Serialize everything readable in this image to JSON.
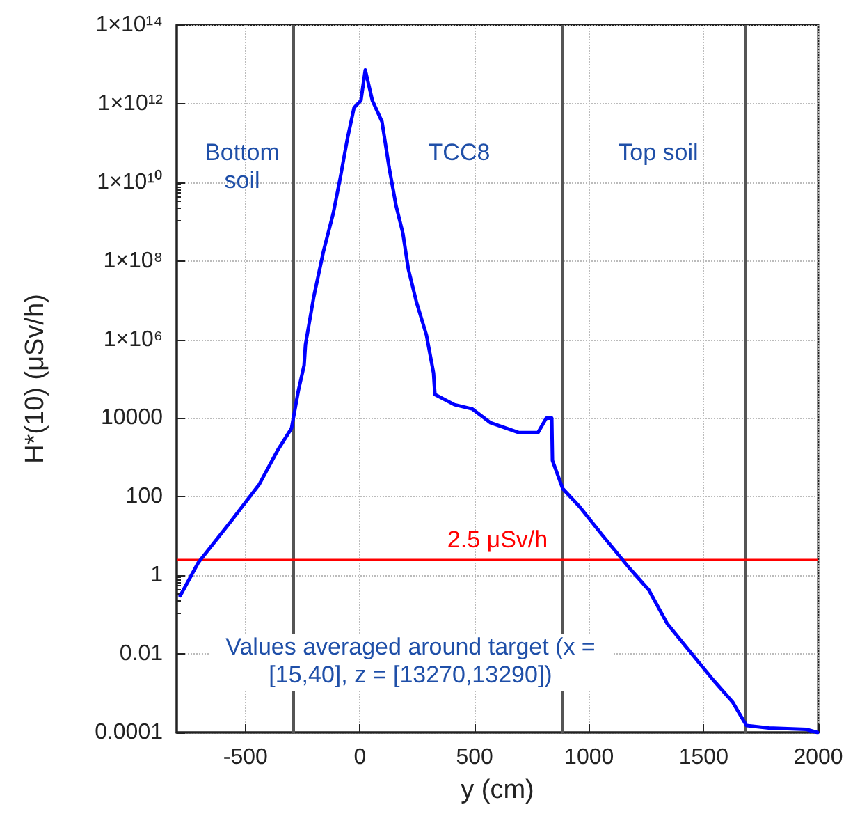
{
  "chart_data": {
    "type": "line",
    "xlabel": "y (cm)",
    "ylabel": "H*(10) (μSv/h)",
    "x": [
      -785,
      -706,
      -560,
      -439,
      -360,
      -299,
      -269,
      -244,
      -238,
      -202,
      -159,
      -117,
      -86,
      -56,
      -26,
      4,
      23,
      54,
      96,
      127,
      157,
      187,
      211,
      247,
      290,
      321,
      327,
      412,
      491,
      570,
      692,
      777,
      813,
      837,
      840,
      885,
      958,
      1055,
      1177,
      1261,
      1341,
      1420,
      1541,
      1626,
      1687,
      1784,
      1948,
      1997
    ],
    "series": [
      {
        "color": "#0000ff",
        "values": [
          0.3,
          2.1,
          25,
          210,
          1500,
          5500,
          50000,
          220000,
          740000,
          12000000,
          180000000,
          1600000000,
          13000000000,
          120000000000,
          790000000000,
          1200000000000,
          7200000000000,
          1200000000000,
          350000000000,
          24000000000,
          2600000000,
          510000000,
          62000000,
          8700000,
          1300000,
          140000,
          40000,
          22000,
          17000,
          7600,
          4300,
          4300,
          10000,
          10000,
          830,
          160,
          56,
          11,
          1.5,
          0.42,
          0.059,
          0.016,
          0.0022,
          0.0006,
          0.00015,
          0.00013,
          0.00012,
          0.0001
        ]
      }
    ],
    "xlim": [
      -800,
      2000
    ],
    "xticks": [
      -500,
      0,
      500,
      1000,
      1500,
      2000
    ],
    "ylim": [
      0.0001,
      100000000000000
    ],
    "yticks": [
      0.0001,
      0.01,
      1,
      100,
      10000,
      {
        "value": 1000000,
        "label": "1×10⁶"
      },
      {
        "value": 100000000,
        "label": "1×10⁸"
      },
      {
        "value": 10000000000,
        "label": "1×10¹⁰"
      },
      {
        "value": 1000000000000,
        "label": "1×10¹²"
      },
      {
        "value": 100000000000000,
        "label": "1×10¹⁴"
      }
    ],
    "log": "y",
    "grid": true,
    "marker": "none",
    "line_style": "solid",
    "ref_lines": [
      {
        "axis": "x",
        "value": -290,
        "color": "#555555"
      },
      {
        "axis": "x",
        "value": 880,
        "color": "#555555"
      },
      {
        "axis": "x",
        "value": 1680,
        "color": "#555555"
      },
      {
        "axis": "y",
        "value": 2.5,
        "label": "2.5 μSv/h",
        "color": "#ff0000"
      }
    ],
    "annotations": [
      "Bottom soil",
      "TCC8",
      "Top soil",
      "Values averaged around target (x =[15,40], z = [13270,13290])"
    ]
  }
}
